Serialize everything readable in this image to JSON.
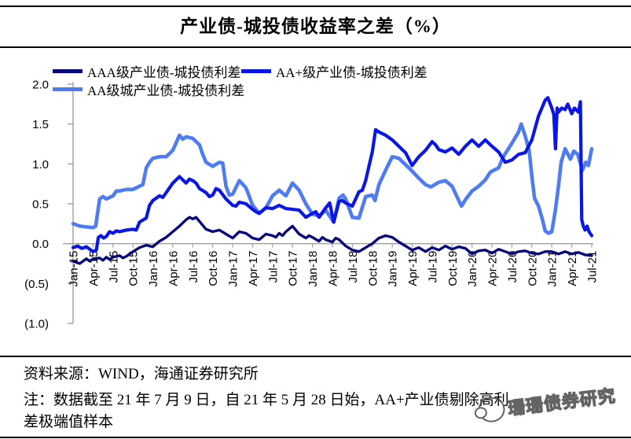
{
  "title": "产业债-城投债收益率之差（%）",
  "chart_data": {
    "type": "line",
    "title": "产业债-城投债收益率之差（%）",
    "x_unit": "months since Jan-2015 (0 = Jan-15, 78 = Jul-21)",
    "x_tick_positions": [
      0,
      3,
      6,
      9,
      12,
      15,
      18,
      21,
      24,
      27,
      30,
      33,
      36,
      39,
      42,
      45,
      48,
      51,
      54,
      57,
      60,
      63,
      66,
      69,
      72,
      75,
      78
    ],
    "x_tick_labels": [
      "Jan-15",
      "Apr-15",
      "Jul-15",
      "Oct-15",
      "Jan-16",
      "Apr-16",
      "Jul-16",
      "Oct-16",
      "Jan-17",
      "Apr-17",
      "Jul-17",
      "Oct-17",
      "Jan-18",
      "Apr-18",
      "Jul-18",
      "Oct-18",
      "Jan-19",
      "Apr-19",
      "Jul-19",
      "Oct-19",
      "Jan-20",
      "Apr-20",
      "Jul-20",
      "Oct-20",
      "Jan-21",
      "Apr-21",
      "Jul-21"
    ],
    "y_ticks": [
      2.0,
      1.5,
      1.0,
      0.5,
      0.0,
      -0.5,
      -1.0
    ],
    "y_tick_labels": [
      "2.0",
      "1.5",
      "1.0",
      "0.5",
      "0.0",
      "(0.5)",
      "(1.0)"
    ],
    "ylim": [
      -1.0,
      2.0
    ],
    "grid": false,
    "legend_position": "top-left-two-rows",
    "axis_color": "#a0a0a0",
    "series": [
      {
        "name": "AAA级产业债-城投债利差",
        "color": "#07077c",
        "points": [
          [
            0,
            -0.22
          ],
          [
            1,
            -0.25
          ],
          [
            2,
            -0.19
          ],
          [
            2.5,
            -0.22
          ],
          [
            3,
            -0.19
          ],
          [
            4,
            -0.18
          ],
          [
            4.5,
            -0.21
          ],
          [
            5,
            -0.17
          ],
          [
            5.5,
            -0.2
          ],
          [
            6,
            -0.17
          ],
          [
            7,
            -0.15
          ],
          [
            7.5,
            -0.18
          ],
          [
            8,
            -0.16
          ],
          [
            9,
            -0.1
          ],
          [
            10,
            -0.05
          ],
          [
            11,
            -0.02
          ],
          [
            12,
            -0.04
          ],
          [
            13,
            0.03
          ],
          [
            14,
            0.08
          ],
          [
            15,
            0.15
          ],
          [
            16,
            0.22
          ],
          [
            17,
            0.3
          ],
          [
            17.5,
            0.33
          ],
          [
            18,
            0.31
          ],
          [
            18.5,
            0.33
          ],
          [
            19,
            0.28
          ],
          [
            20,
            0.18
          ],
          [
            21,
            0.15
          ],
          [
            22,
            0.17
          ],
          [
            23,
            0.12
          ],
          [
            24,
            0.07
          ],
          [
            25,
            0.15
          ],
          [
            26,
            0.13
          ],
          [
            27,
            0.07
          ],
          [
            28,
            0.05
          ],
          [
            29,
            0.12
          ],
          [
            30,
            0.1
          ],
          [
            30.5,
            0.08
          ],
          [
            31,
            0.13
          ],
          [
            31.5,
            0.1
          ],
          [
            32,
            0.15
          ],
          [
            33,
            0.22
          ],
          [
            34,
            0.12
          ],
          [
            35,
            0.07
          ],
          [
            35.5,
            0.1
          ],
          [
            36,
            0.08
          ],
          [
            37,
            0.03
          ],
          [
            37.5,
            0.08
          ],
          [
            38,
            0.05
          ],
          [
            39,
            0.02
          ],
          [
            39.5,
            0.07
          ],
          [
            40,
            0.05
          ],
          [
            41,
            -0.03
          ],
          [
            42,
            -0.08
          ],
          [
            43,
            -0.1
          ],
          [
            44,
            -0.05
          ],
          [
            45,
            0.0
          ],
          [
            46,
            0.07
          ],
          [
            47,
            0.1
          ],
          [
            48,
            0.08
          ],
          [
            49,
            0.02
          ],
          [
            50,
            -0.03
          ],
          [
            51,
            -0.08
          ],
          [
            52,
            -0.05
          ],
          [
            53,
            -0.1
          ],
          [
            54,
            -0.05
          ],
          [
            55,
            -0.08
          ],
          [
            56,
            -0.03
          ],
          [
            57,
            -0.07
          ],
          [
            58,
            -0.04
          ],
          [
            59,
            -0.06
          ],
          [
            60,
            -0.13
          ],
          [
            61,
            -0.09
          ],
          [
            62,
            -0.08
          ],
          [
            63,
            -0.12
          ],
          [
            64,
            -0.07
          ],
          [
            65,
            -0.1
          ],
          [
            66,
            -0.13
          ],
          [
            67,
            -0.1
          ],
          [
            68,
            -0.09
          ],
          [
            69,
            -0.12
          ],
          [
            70,
            -0.13
          ],
          [
            71,
            -0.1
          ],
          [
            72,
            -0.1
          ],
          [
            73,
            -0.13
          ],
          [
            74,
            -0.1
          ],
          [
            75,
            -0.13
          ],
          [
            76,
            -0.11
          ],
          [
            77,
            -0.14
          ],
          [
            78,
            -0.15
          ]
        ]
      },
      {
        "name": "AA+级产业债-城投债利差",
        "color": "#0a16e6",
        "points": [
          [
            0,
            -0.05
          ],
          [
            0.7,
            -0.03
          ],
          [
            1.3,
            -0.06
          ],
          [
            2,
            -0.04
          ],
          [
            3,
            -0.1
          ],
          [
            3.5,
            -0.08
          ],
          [
            3.8,
            0.08
          ],
          [
            4.2,
            0.1
          ],
          [
            4.6,
            0.07
          ],
          [
            5,
            0.09
          ],
          [
            5.5,
            0.15
          ],
          [
            6,
            0.13
          ],
          [
            6.5,
            0.16
          ],
          [
            7,
            0.15
          ],
          [
            8,
            0.17
          ],
          [
            9,
            0.18
          ],
          [
            9.5,
            0.17
          ],
          [
            10,
            0.27
          ],
          [
            11,
            0.32
          ],
          [
            11.5,
            0.48
          ],
          [
            12,
            0.54
          ],
          [
            13,
            0.6
          ],
          [
            13.5,
            0.58
          ],
          [
            14,
            0.64
          ],
          [
            15,
            0.76
          ],
          [
            16,
            0.84
          ],
          [
            16.5,
            0.8
          ],
          [
            17,
            0.76
          ],
          [
            17.5,
            0.81
          ],
          [
            18,
            0.79
          ],
          [
            18.5,
            0.76
          ],
          [
            19,
            0.69
          ],
          [
            20,
            0.64
          ],
          [
            20.5,
            0.59
          ],
          [
            21,
            0.61
          ],
          [
            21.5,
            0.69
          ],
          [
            22,
            0.67
          ],
          [
            23,
            0.56
          ],
          [
            24,
            0.48
          ],
          [
            24.5,
            0.47
          ],
          [
            25,
            0.52
          ],
          [
            26,
            0.5
          ],
          [
            27,
            0.43
          ],
          [
            27.5,
            0.4
          ],
          [
            28,
            0.38
          ],
          [
            29,
            0.45
          ],
          [
            30,
            0.44
          ],
          [
            31,
            0.48
          ],
          [
            32,
            0.44
          ],
          [
            33,
            0.43
          ],
          [
            34,
            0.42
          ],
          [
            35,
            0.33
          ],
          [
            36,
            0.38
          ],
          [
            36.5,
            0.4
          ],
          [
            37,
            0.33
          ],
          [
            38,
            0.45
          ],
          [
            38.6,
            0.51
          ],
          [
            39.2,
            0.27
          ],
          [
            40,
            0.53
          ],
          [
            40.5,
            0.54
          ],
          [
            41,
            0.51
          ],
          [
            42,
            0.47
          ],
          [
            43,
            0.65
          ],
          [
            43.5,
            0.67
          ],
          [
            44,
            0.79
          ],
          [
            44.5,
            0.97
          ],
          [
            45,
            1.15
          ],
          [
            45.5,
            1.43
          ],
          [
            46,
            1.4
          ],
          [
            47,
            1.36
          ],
          [
            48,
            1.3
          ],
          [
            49,
            1.22
          ],
          [
            50,
            1.14
          ],
          [
            51,
            0.98
          ],
          [
            52,
            1.09
          ],
          [
            53,
            1.17
          ],
          [
            54,
            1.28
          ],
          [
            54.5,
            1.24
          ],
          [
            55,
            1.18
          ],
          [
            56,
            1.15
          ],
          [
            57,
            1.2
          ],
          [
            58,
            1.12
          ],
          [
            59,
            1.22
          ],
          [
            60,
            1.3
          ],
          [
            61,
            1.22
          ],
          [
            62,
            1.3
          ],
          [
            63,
            1.22
          ],
          [
            64,
            1.15
          ],
          [
            65,
            1.02
          ],
          [
            66,
            1.05
          ],
          [
            67,
            1.12
          ],
          [
            68,
            1.14
          ],
          [
            69,
            1.3
          ],
          [
            70,
            1.6
          ],
          [
            71,
            1.8
          ],
          [
            71.4,
            1.83
          ],
          [
            72,
            1.7
          ],
          [
            72.3,
            1.62
          ],
          [
            72.55,
            1.19
          ],
          [
            72.8,
            1.7
          ],
          [
            73,
            1.65
          ],
          [
            73.5,
            1.7
          ],
          [
            74,
            1.68
          ],
          [
            74.4,
            1.75
          ],
          [
            75,
            1.63
          ],
          [
            75.4,
            1.7
          ],
          [
            76,
            1.65
          ],
          [
            76.3,
            1.78
          ],
          [
            76.5,
            0.3
          ],
          [
            76.7,
            0.23
          ],
          [
            77,
            0.17
          ],
          [
            77.3,
            0.22
          ],
          [
            77.6,
            0.15
          ],
          [
            78,
            0.1
          ]
        ]
      },
      {
        "name": "AA级城产业债-城投债利差",
        "color": "#4f7cf2",
        "points": [
          [
            0,
            0.25
          ],
          [
            1,
            0.22
          ],
          [
            2,
            0.21
          ],
          [
            3,
            0.2
          ],
          [
            3.4,
            0.22
          ],
          [
            4,
            0.56
          ],
          [
            4.5,
            0.59
          ],
          [
            5,
            0.56
          ],
          [
            5.5,
            0.58
          ],
          [
            6,
            0.6
          ],
          [
            6.5,
            0.66
          ],
          [
            7,
            0.66
          ],
          [
            7.5,
            0.67
          ],
          [
            8,
            0.68
          ],
          [
            9,
            0.68
          ],
          [
            10,
            0.72
          ],
          [
            10.5,
            0.74
          ],
          [
            11,
            0.95
          ],
          [
            11.5,
            1.02
          ],
          [
            12,
            1.07
          ],
          [
            13,
            1.09
          ],
          [
            14,
            1.09
          ],
          [
            15,
            1.17
          ],
          [
            16,
            1.36
          ],
          [
            16.5,
            1.31
          ],
          [
            17,
            1.34
          ],
          [
            18,
            1.32
          ],
          [
            18.5,
            1.28
          ],
          [
            19,
            1.24
          ],
          [
            19.5,
            1.12
          ],
          [
            20,
            1.02
          ],
          [
            21,
            0.97
          ],
          [
            22,
            1.02
          ],
          [
            22.5,
            1.01
          ],
          [
            23,
            0.72
          ],
          [
            23.5,
            0.61
          ],
          [
            24,
            0.62
          ],
          [
            25,
            0.79
          ],
          [
            26,
            0.7
          ],
          [
            27,
            0.48
          ],
          [
            28,
            0.38
          ],
          [
            29,
            0.45
          ],
          [
            30,
            0.6
          ],
          [
            31,
            0.67
          ],
          [
            32,
            0.6
          ],
          [
            33,
            0.76
          ],
          [
            34,
            0.67
          ],
          [
            35,
            0.5
          ],
          [
            36,
            0.37
          ],
          [
            37,
            0.35
          ],
          [
            38,
            0.42
          ],
          [
            39.2,
            0.27
          ],
          [
            40,
            0.57
          ],
          [
            40.6,
            0.61
          ],
          [
            41,
            0.56
          ],
          [
            42,
            0.33
          ],
          [
            43,
            0.32
          ],
          [
            44,
            0.59
          ],
          [
            45,
            0.61
          ],
          [
            45.4,
            0.54
          ],
          [
            46,
            0.74
          ],
          [
            47,
            0.92
          ],
          [
            48,
            1.09
          ],
          [
            49,
            1.07
          ],
          [
            50,
            0.99
          ],
          [
            51,
            0.91
          ],
          [
            52,
            0.82
          ],
          [
            53,
            0.74
          ],
          [
            53.8,
            0.71
          ],
          [
            55,
            0.77
          ],
          [
            56,
            0.79
          ],
          [
            57,
            0.72
          ],
          [
            58.4,
            0.47
          ],
          [
            59,
            0.55
          ],
          [
            60,
            0.66
          ],
          [
            61,
            0.72
          ],
          [
            62,
            0.8
          ],
          [
            62.7,
            0.89
          ],
          [
            63,
            0.91
          ],
          [
            64,
            0.95
          ],
          [
            64.7,
            1.09
          ],
          [
            66,
            1.26
          ],
          [
            67,
            1.4
          ],
          [
            67.4,
            1.5
          ],
          [
            68,
            1.35
          ],
          [
            68.6,
            1.16
          ],
          [
            69,
            0.85
          ],
          [
            69.4,
            0.57
          ],
          [
            70,
            0.47
          ],
          [
            70.6,
            0.3
          ],
          [
            71,
            0.16
          ],
          [
            71.5,
            0.13
          ],
          [
            72,
            0.15
          ],
          [
            72.5,
            0.4
          ],
          [
            73,
            0.72
          ],
          [
            73.4,
            1.02
          ],
          [
            74,
            1.19
          ],
          [
            74.8,
            1.06
          ],
          [
            75.3,
            1.16
          ],
          [
            75.9,
            1.12
          ],
          [
            76.6,
            0.92
          ],
          [
            77.1,
            1.02
          ],
          [
            77.5,
            0.98
          ],
          [
            78,
            1.19
          ]
        ]
      }
    ]
  },
  "footer": {
    "source": "资料来源：WIND，海通证券研究所",
    "note_line1": "注：数据截至 21 年 7 月 9 日，自 21 年 5 月 28 日始，AA+产业债剔除高利",
    "note_line2": "差极端值样本"
  },
  "watermark": {
    "text": "珊珊债券研究"
  }
}
